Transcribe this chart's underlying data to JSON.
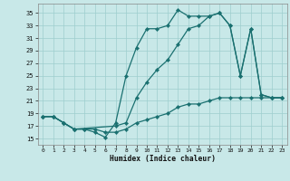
{
  "xlabel": "Humidex (Indice chaleur)",
  "background_color": "#c8e8e8",
  "grid_color": "#9ecece",
  "line_color": "#1a7070",
  "xlim": [
    -0.5,
    23.5
  ],
  "ylim": [
    14,
    36.5
  ],
  "yticks": [
    15,
    17,
    19,
    21,
    23,
    25,
    27,
    29,
    31,
    33,
    35
  ],
  "xticks": [
    0,
    1,
    2,
    3,
    4,
    5,
    6,
    7,
    8,
    9,
    10,
    11,
    12,
    13,
    14,
    15,
    16,
    17,
    18,
    19,
    20,
    21,
    22,
    23
  ],
  "curve1_x": [
    0,
    1,
    2,
    3,
    4,
    5,
    6,
    7,
    8,
    9,
    10,
    11,
    12,
    13,
    14,
    15,
    16,
    17,
    18,
    19,
    20,
    21,
    22,
    23
  ],
  "curve1_y": [
    18.5,
    18.5,
    17.5,
    16.5,
    16.5,
    16.0,
    15.2,
    17.5,
    25.0,
    29.5,
    32.5,
    32.5,
    33.0,
    35.5,
    34.5,
    34.5,
    34.5,
    35.0,
    33.0,
    25.0,
    32.5,
    22.0,
    21.5,
    21.5
  ],
  "curve2_x": [
    0,
    1,
    2,
    3,
    7,
    8,
    9,
    10,
    11,
    12,
    13,
    14,
    15,
    16,
    17,
    18,
    19,
    20,
    21,
    22,
    23
  ],
  "curve2_y": [
    18.5,
    18.5,
    17.5,
    16.5,
    17.0,
    17.5,
    21.5,
    24.0,
    26.0,
    27.5,
    30.0,
    32.5,
    33.0,
    34.5,
    35.0,
    33.0,
    25.0,
    32.5,
    22.0,
    21.5,
    21.5
  ],
  "curve3_x": [
    0,
    1,
    2,
    3,
    4,
    5,
    6,
    7,
    8,
    9,
    10,
    11,
    12,
    13,
    14,
    15,
    16,
    17,
    18,
    19,
    20,
    21,
    22,
    23
  ],
  "curve3_y": [
    18.5,
    18.5,
    17.5,
    16.5,
    16.5,
    16.5,
    16.0,
    16.0,
    16.5,
    17.5,
    18.0,
    18.5,
    19.0,
    20.0,
    20.5,
    20.5,
    21.0,
    21.5,
    21.5,
    21.5,
    21.5,
    21.5,
    21.5,
    21.5
  ],
  "figsize": [
    3.2,
    2.0
  ],
  "dpi": 100
}
